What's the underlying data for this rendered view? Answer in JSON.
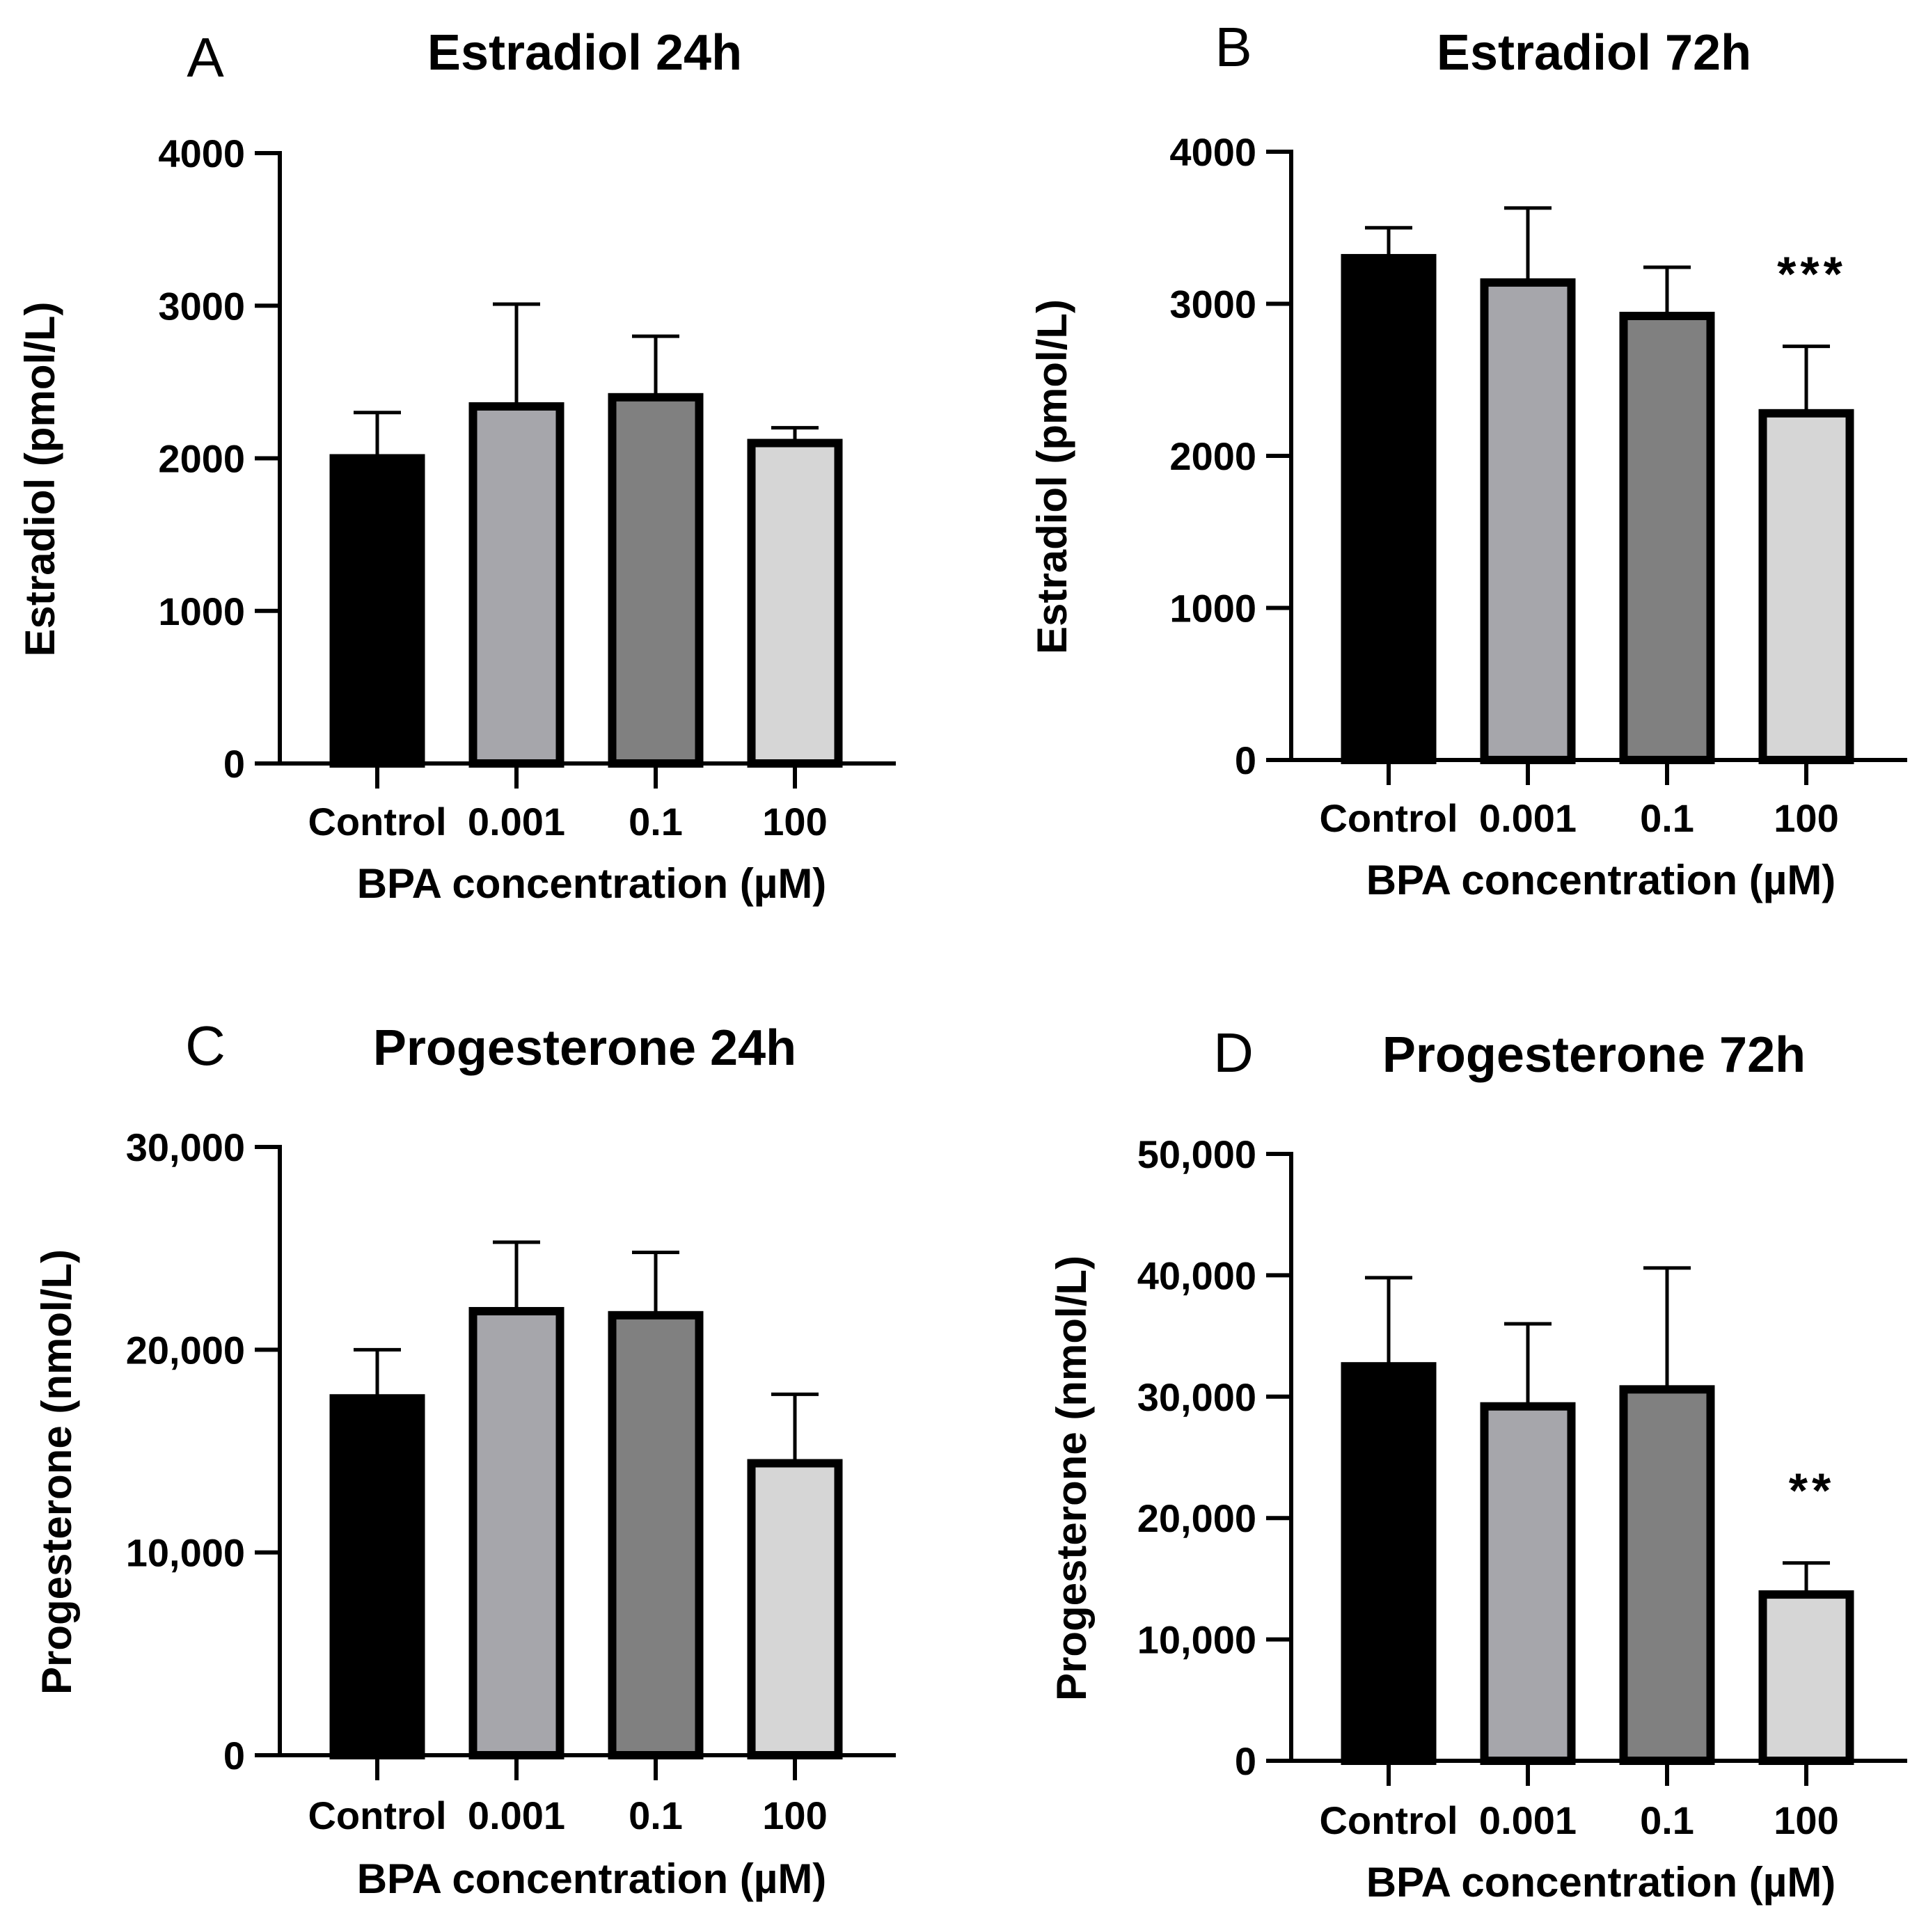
{
  "chart_data": [
    {
      "type": "bar",
      "panel": "A",
      "title": "Estradiol 24h",
      "xlabel": "BPA concentration (µM)",
      "ylabel": "Estradiol (pmol/L)",
      "categories": [
        "Control",
        "0.001",
        "0.1",
        "100"
      ],
      "values": [
        2000,
        2340,
        2400,
        2100
      ],
      "errors": [
        300,
        670,
        400,
        100
      ],
      "colors": [
        "#000000",
        "#a6a6ab",
        "#808080",
        "#d6d6d6"
      ],
      "significance": [
        "",
        "",
        "",
        ""
      ],
      "ylim": [
        0,
        4000
      ],
      "yticks": [
        0,
        1000,
        2000,
        3000,
        4000
      ],
      "ytick_labels": [
        "0",
        "1000",
        "2000",
        "3000",
        "4000"
      ]
    },
    {
      "type": "bar",
      "panel": "B",
      "title": "Estradiol 72h",
      "xlabel": "BPA concentration (µM)",
      "ylabel": "Estradiol (pmol/L)",
      "categories": [
        "Control",
        "0.001",
        "0.1",
        "100"
      ],
      "values": [
        3300,
        3140,
        2920,
        2280
      ],
      "errors": [
        200,
        490,
        320,
        440
      ],
      "colors": [
        "#000000",
        "#a6a6ab",
        "#808080",
        "#d6d6d6"
      ],
      "significance": [
        "",
        "",
        "",
        "***"
      ],
      "ylim": [
        0,
        4000
      ],
      "yticks": [
        0,
        1000,
        2000,
        3000,
        4000
      ],
      "ytick_labels": [
        "0",
        "1000",
        "2000",
        "3000",
        "4000"
      ]
    },
    {
      "type": "bar",
      "panel": "C",
      "title": "Progesterone 24h",
      "xlabel": "BPA concentration (µM)",
      "ylabel": "Progesterone (nmol/L)",
      "categories": [
        "Control",
        "0.001",
        "0.1",
        "100"
      ],
      "values": [
        17600,
        21900,
        21700,
        14400
      ],
      "errors": [
        2400,
        3400,
        3100,
        3400
      ],
      "colors": [
        "#000000",
        "#a6a6ab",
        "#808080",
        "#d6d6d6"
      ],
      "significance": [
        "",
        "",
        "",
        ""
      ],
      "ylim": [
        0,
        30000
      ],
      "yticks": [
        0,
        10000,
        20000,
        30000
      ],
      "ytick_labels": [
        "0",
        "10,000",
        "20,000",
        "30,000"
      ]
    },
    {
      "type": "bar",
      "panel": "D",
      "title": "Progesterone 72h",
      "xlabel": "BPA concentration (µM)",
      "ylabel": "Progesterone (nmol/L)",
      "categories": [
        "Control",
        "0.001",
        "0.1",
        "100"
      ],
      "values": [
        32500,
        29200,
        30600,
        13700
      ],
      "errors": [
        7300,
        6800,
        10000,
        2600
      ],
      "colors": [
        "#000000",
        "#a6a6ab",
        "#808080",
        "#d6d6d6"
      ],
      "significance": [
        "",
        "",
        "",
        "**"
      ],
      "ylim": [
        0,
        50000
      ],
      "yticks": [
        0,
        10000,
        20000,
        30000,
        40000,
        50000
      ],
      "ytick_labels": [
        "0",
        "10,000",
        "20,000",
        "30,000",
        "40,000",
        "50,000"
      ]
    }
  ]
}
